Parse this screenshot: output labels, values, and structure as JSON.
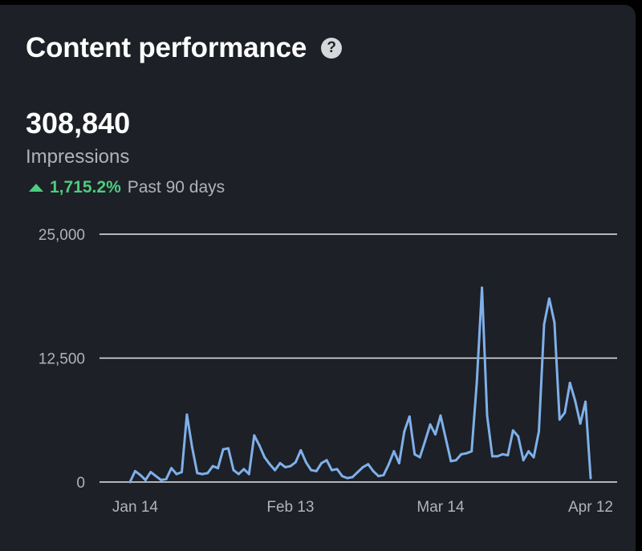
{
  "header": {
    "title": "Content performance",
    "help_icon": "question-circle-icon"
  },
  "metric": {
    "value": "308,840",
    "label": "Impressions"
  },
  "trend": {
    "direction": "up",
    "value": "1,715.2%",
    "period": "Past 90 days",
    "color": "#4ecb80"
  },
  "chart_data": {
    "type": "line",
    "y_ticks": [
      "25,000",
      "12,500",
      "0"
    ],
    "ylim": [
      0,
      25000
    ],
    "x_ticks": [
      {
        "label": "Jan 14",
        "index": 1
      },
      {
        "label": "Feb 13",
        "index": 31
      },
      {
        "label": "Mar 14",
        "index": 60
      },
      {
        "label": "Apr 12",
        "index": 89
      }
    ],
    "grid": true,
    "series": [
      {
        "color": "#7fb0ea",
        "values": [
          0,
          1100,
          700,
          200,
          1000,
          600,
          200,
          300,
          1400,
          800,
          1000,
          6800,
          3500,
          900,
          800,
          900,
          1600,
          1400,
          3300,
          3400,
          1200,
          800,
          1300,
          800,
          4700,
          3700,
          2500,
          1800,
          1200,
          1900,
          1500,
          1600,
          2000,
          3200,
          2000,
          1200,
          1100,
          1900,
          2200,
          1200,
          1300,
          600,
          400,
          500,
          1000,
          1500,
          1800,
          1100,
          600,
          700,
          1800,
          3100,
          1900,
          5100,
          6600,
          2800,
          2500,
          4100,
          5800,
          4800,
          6700,
          4400,
          2100,
          2200,
          2800,
          2900,
          3100,
          10000,
          19600,
          6700,
          2600,
          2600,
          2800,
          2700,
          5200,
          4600,
          2200,
          3100,
          2500,
          5100,
          15900,
          18500,
          16100,
          6300,
          7000,
          10000,
          8200,
          5900,
          8100,
          400
        ]
      }
    ]
  }
}
